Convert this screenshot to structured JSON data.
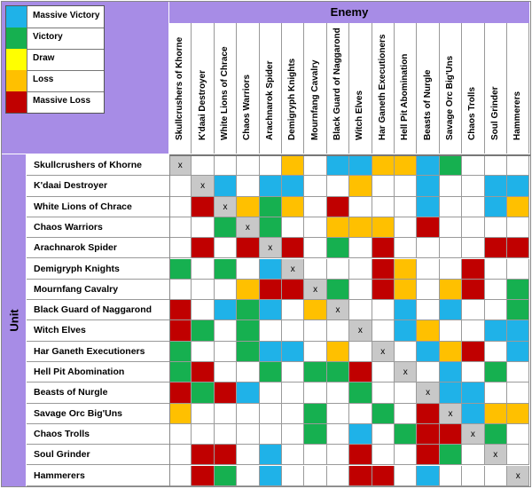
{
  "colors": {
    "massive_victory": "#1fb2e8",
    "victory": "#16b050",
    "draw": "#ffff00",
    "loss": "#ffc000",
    "massive_loss": "#c00000",
    "self": "#c8c8c8",
    "empty": "#ffffff"
  },
  "legend": [
    {
      "key": "massive_victory",
      "label": "Massive Victory"
    },
    {
      "key": "victory",
      "label": "Victory"
    },
    {
      "key": "draw",
      "label": "Draw"
    },
    {
      "key": "loss",
      "label": "Loss"
    },
    {
      "key": "massive_loss",
      "label": "Massive Loss"
    }
  ],
  "enemy_label": "Enemy",
  "unit_label": "Unit",
  "self_mark": "x",
  "units": [
    "Skullcrushers of Khorne",
    "K'daai Destroyer",
    "White Lions of Chrace",
    "Chaos Warriors",
    "Arachnarok Spider",
    "Demigryph Knights",
    "Mournfang Cavalry",
    "Black Guard of Naggarond",
    "Witch Elves",
    "Har Ganeth Executioners",
    "Hell Pit Abomination",
    "Beasts of Nurgle",
    "Savage Orc Big'Uns",
    "Chaos Trolls",
    "Soul Grinder",
    "Hammerers"
  ],
  "code_key": {
    "MV": "massive_victory",
    "V": "victory",
    "D": "draw",
    "L": "loss",
    "ML": "massive_loss",
    "X": "self",
    "": "empty"
  },
  "matrix": [
    [
      "X",
      "",
      "",
      "",
      "",
      "L",
      "",
      "MV",
      "MV",
      "L",
      "L",
      "MV",
      "V",
      "",
      "",
      ""
    ],
    [
      "",
      "X",
      "MV",
      "",
      "MV",
      "MV",
      "",
      "",
      "L",
      "",
      "",
      "MV",
      "",
      "",
      "MV",
      "MV"
    ],
    [
      "",
      "ML",
      "X",
      "L",
      "V",
      "L",
      "",
      "ML",
      "",
      "",
      "",
      "MV",
      "",
      "",
      "MV",
      "L"
    ],
    [
      "",
      "",
      "V",
      "X",
      "V",
      "",
      "",
      "L",
      "L",
      "L",
      "",
      "ML",
      "",
      "",
      "",
      ""
    ],
    [
      "",
      "ML",
      "",
      "ML",
      "X",
      "ML",
      "",
      "V",
      "",
      "ML",
      "",
      "",
      "",
      "",
      "ML",
      "ML"
    ],
    [
      "V",
      "",
      "V",
      "",
      "MV",
      "X",
      "",
      "",
      "",
      "ML",
      "L",
      "",
      "",
      "ML",
      "",
      ""
    ],
    [
      "",
      "",
      "",
      "L",
      "ML",
      "ML",
      "X",
      "V",
      "",
      "ML",
      "L",
      "",
      "L",
      "ML",
      "",
      "V"
    ],
    [
      "ML",
      "",
      "MV",
      "V",
      "MV",
      "",
      "L",
      "X",
      "",
      "",
      "MV",
      "",
      "MV",
      "",
      "",
      "V"
    ],
    [
      "ML",
      "V",
      "",
      "V",
      "",
      "",
      "",
      "",
      "X",
      "",
      "MV",
      "L",
      "",
      "",
      "MV",
      "MV"
    ],
    [
      "V",
      "",
      "",
      "V",
      "MV",
      "MV",
      "",
      "L",
      "",
      "X",
      "",
      "MV",
      "L",
      "ML",
      "",
      "MV"
    ],
    [
      "V",
      "ML",
      "",
      "",
      "V",
      "",
      "V",
      "V",
      "ML",
      "",
      "X",
      "",
      "MV",
      "",
      "V",
      ""
    ],
    [
      "ML",
      "V",
      "ML",
      "MV",
      "",
      "",
      "",
      "",
      "V",
      "",
      "",
      "X",
      "MV",
      "MV",
      "",
      ""
    ],
    [
      "L",
      "",
      "",
      "",
      "",
      "",
      "V",
      "",
      "",
      "V",
      "",
      "ML",
      "X",
      "MV",
      "L",
      "L"
    ],
    [
      "",
      "",
      "",
      "",
      "",
      "",
      "V",
      "",
      "MV",
      "",
      "V",
      "ML",
      "ML",
      "X",
      "V",
      ""
    ],
    [
      "",
      "ML",
      "ML",
      "",
      "MV",
      "",
      "",
      "",
      "ML",
      "",
      "",
      "ML",
      "V",
      "",
      "X",
      ""
    ],
    [
      "",
      "ML",
      "V",
      "",
      "MV",
      "",
      "",
      "",
      "ML",
      "ML",
      "",
      "MV",
      "",
      "",
      "",
      "X"
    ]
  ]
}
